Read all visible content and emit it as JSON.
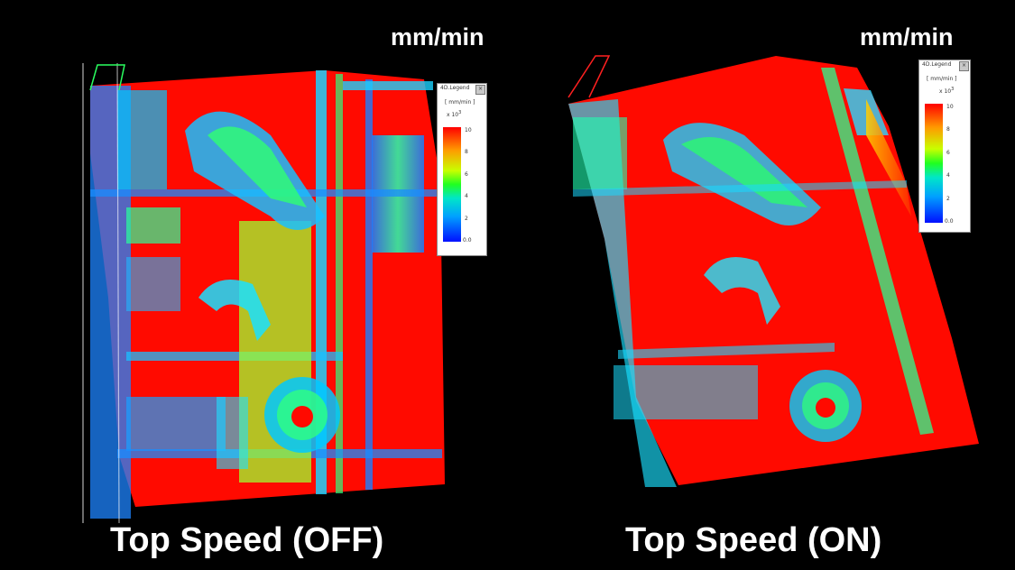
{
  "left_panel": {
    "unit_label": "mm/min",
    "caption": "Top Speed (OFF)",
    "legend": {
      "title": "4D.Legend",
      "close_glyph": "×",
      "units": "[ mm/min ]",
      "scale": "x 10",
      "scale_exp": "3",
      "ticks": [
        "10",
        "8",
        "6",
        "4",
        "2",
        "0.0"
      ]
    }
  },
  "right_panel": {
    "unit_label": "mm/min",
    "caption": "Top Speed (ON)",
    "legend": {
      "title": "4D.Legend",
      "close_glyph": "×",
      "units": "[ mm/min ]",
      "scale": "x 10",
      "scale_exp": "3",
      "ticks": [
        "10",
        "8",
        "6",
        "4",
        "2",
        "0.0"
      ]
    }
  },
  "colors": {
    "background": "#000000",
    "high_speed": "#ff0000",
    "low_speed": "#0010ff",
    "mid_speed": "#20ff20"
  }
}
